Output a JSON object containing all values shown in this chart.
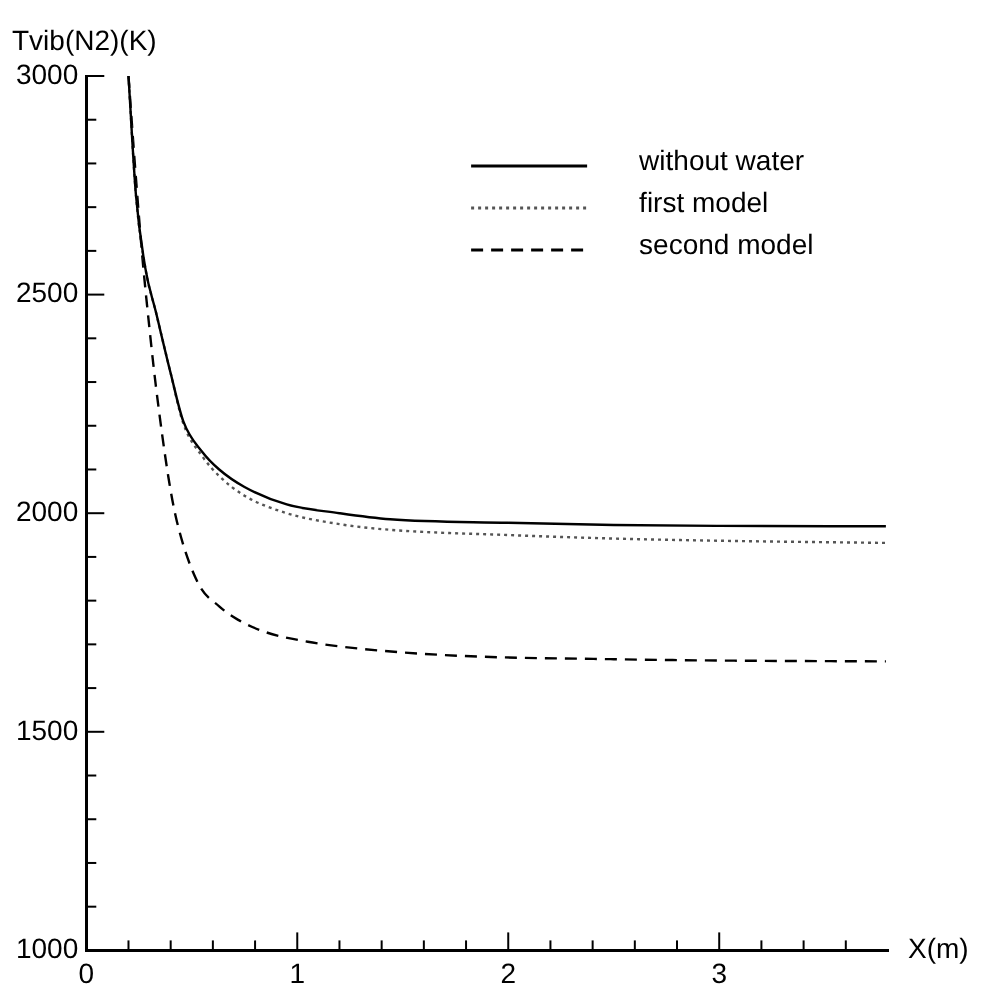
{
  "chart_data": {
    "type": "line",
    "xlabel": "X(m)",
    "ylabel": "Tvib(N2)(K)",
    "xlim": [
      0,
      3.8
    ],
    "ylim": [
      1000,
      3000
    ],
    "xticks": [
      0,
      {
        "value": 0.2,
        "label": null
      },
      {
        "value": 0.4,
        "label": null
      },
      {
        "value": 0.6,
        "label": null
      },
      {
        "value": 0.8,
        "label": null
      },
      1,
      {
        "value": 1.2,
        "label": null
      },
      {
        "value": 1.4,
        "label": null
      },
      {
        "value": 1.6,
        "label": null
      },
      {
        "value": 1.8,
        "label": null
      },
      2,
      {
        "value": 2.2,
        "label": null
      },
      {
        "value": 2.4,
        "label": null
      },
      {
        "value": 2.6,
        "label": null
      },
      {
        "value": 2.8,
        "label": null
      },
      3,
      {
        "value": 3.2,
        "label": null
      },
      {
        "value": 3.4,
        "label": null
      },
      {
        "value": 3.6,
        "label": null
      }
    ],
    "yticks": [
      1000,
      {
        "value": 1100,
        "label": null
      },
      {
        "value": 1200,
        "label": null
      },
      {
        "value": 1300,
        "label": null
      },
      {
        "value": 1400,
        "label": null
      },
      1500,
      {
        "value": 1600,
        "label": null
      },
      {
        "value": 1700,
        "label": null
      },
      {
        "value": 1800,
        "label": null
      },
      {
        "value": 1900,
        "label": null
      },
      2000,
      {
        "value": 2100,
        "label": null
      },
      {
        "value": 2200,
        "label": null
      },
      {
        "value": 2300,
        "label": null
      },
      {
        "value": 2400,
        "label": null
      },
      2500,
      {
        "value": 2600,
        "label": null
      },
      {
        "value": 2700,
        "label": null
      },
      {
        "value": 2800,
        "label": null
      },
      {
        "value": 2900,
        "label": null
      },
      3000
    ],
    "grid": false,
    "legend": "top right",
    "marker": "none",
    "series": [
      {
        "name": "without water",
        "color": "#000000",
        "line_style": "solid",
        "x": [
          0.2,
          0.235,
          0.28,
          0.33,
          0.4,
          0.46,
          0.55,
          0.63,
          0.75,
          0.95,
          1.2,
          1.44,
          2,
          2.5,
          3,
          3.79
        ],
        "values": [
          3000,
          2730,
          2560,
          2460,
          2320,
          2210,
          2140,
          2100,
          2060,
          2020,
          2000,
          1986,
          1978,
          1973,
          1971,
          1970
        ]
      },
      {
        "name": "first model",
        "color": "#555555",
        "line_style": "dotted",
        "x": [
          0.2,
          0.235,
          0.28,
          0.33,
          0.4,
          0.46,
          0.55,
          0.63,
          0.75,
          0.95,
          1.2,
          1.44,
          2,
          2.5,
          3,
          3.79
        ],
        "values": [
          3000,
          2730,
          2560,
          2460,
          2320,
          2205,
          2130,
          2085,
          2040,
          2000,
          1975,
          1962,
          1950,
          1942,
          1937,
          1932
        ]
      },
      {
        "name": "second model",
        "color": "#000000",
        "line_style": "dashed",
        "x": [
          0.2,
          0.23,
          0.265,
          0.3,
          0.33,
          0.39,
          0.43,
          0.53,
          0.63,
          0.72,
          0.85,
          1.05,
          1.3,
          1.76,
          2.5,
          3,
          3.79
        ],
        "values": [
          3000,
          2800,
          2590,
          2420,
          2290,
          2080,
          1980,
          1840,
          1787,
          1756,
          1728,
          1706,
          1690,
          1674,
          1666,
          1663,
          1661
        ]
      }
    ]
  }
}
